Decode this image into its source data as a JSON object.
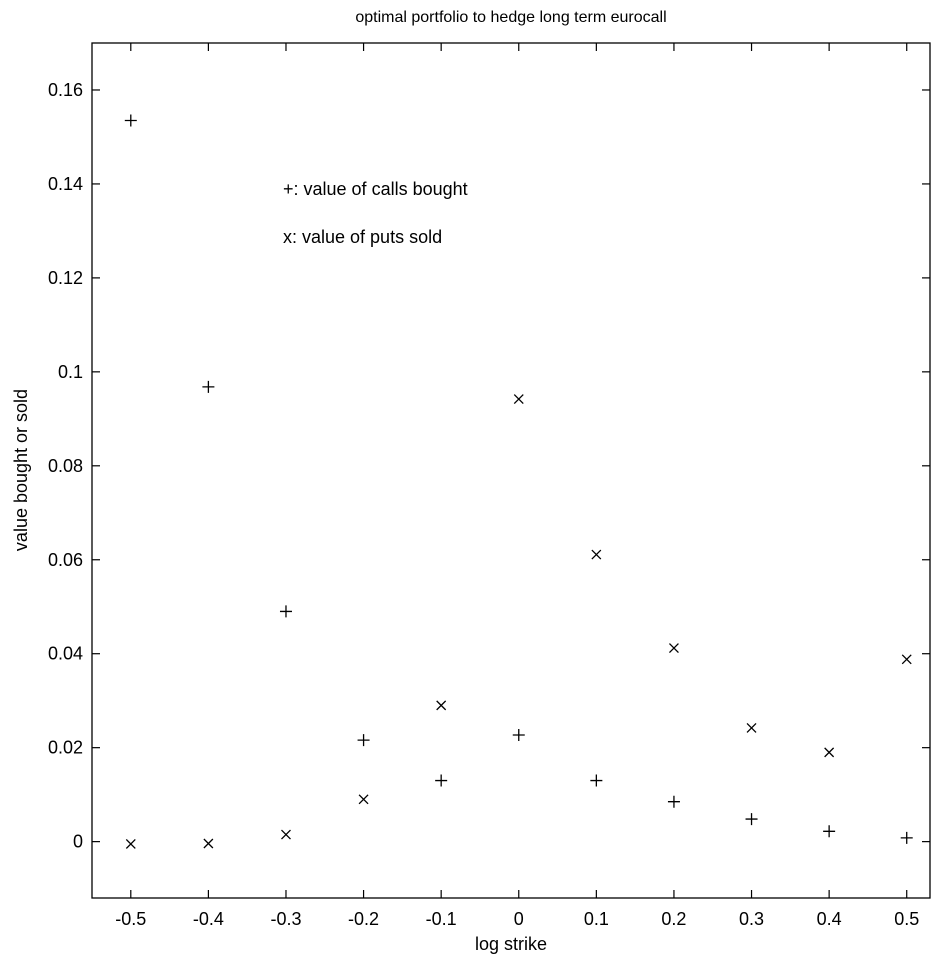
{
  "chart_data": {
    "type": "scatter",
    "title": "optimal portfolio to hedge long term eurocall",
    "xlabel": "log strike",
    "ylabel": "value bought or sold",
    "xlim": [
      -0.55,
      0.53
    ],
    "ylim": [
      -0.012,
      0.17
    ],
    "xticks": [
      -0.5,
      -0.4,
      -0.3,
      -0.2,
      -0.1,
      0,
      0.1,
      0.2,
      0.3,
      0.4,
      0.5
    ],
    "xtick_labels": [
      "-0.5",
      "-0.4",
      "-0.3",
      "-0.2",
      "-0.1",
      "0",
      "0.1",
      "0.2",
      "0.3",
      "0.4",
      "0.5"
    ],
    "yticks": [
      0,
      0.02,
      0.04,
      0.06,
      0.08,
      0.1,
      0.12,
      0.14,
      0.16
    ],
    "ytick_labels": [
      "0",
      "0.02",
      "0.04",
      "0.06",
      "0.08",
      "0.1",
      "0.12",
      "0.14",
      "0.16"
    ],
    "grid": false,
    "series": [
      {
        "name": "value of calls bought",
        "marker": "plus",
        "x": [
          -0.5,
          -0.4,
          -0.3,
          -0.2,
          -0.1,
          0,
          0.1,
          0.2,
          0.3,
          0.4,
          0.5
        ],
        "y": [
          0.1535,
          0.0968,
          0.049,
          0.0216,
          0.013,
          0.0227,
          0.013,
          0.0085,
          0.0048,
          0.0022,
          0.0008
        ]
      },
      {
        "name": "value of puts sold",
        "marker": "x",
        "x": [
          -0.5,
          -0.4,
          -0.3,
          -0.2,
          -0.1,
          0,
          0.1,
          0.2,
          0.3,
          0.4,
          0.5
        ],
        "y": [
          -0.0005,
          -0.0004,
          0.0015,
          0.009,
          0.029,
          0.0942,
          0.0611,
          0.0412,
          0.0242,
          0.019,
          0.0388
        ]
      }
    ],
    "annotations": [
      {
        "symbol": "+",
        "text": ": value of calls bought"
      },
      {
        "symbol": "x",
        "text": ": value of puts sold"
      }
    ]
  }
}
